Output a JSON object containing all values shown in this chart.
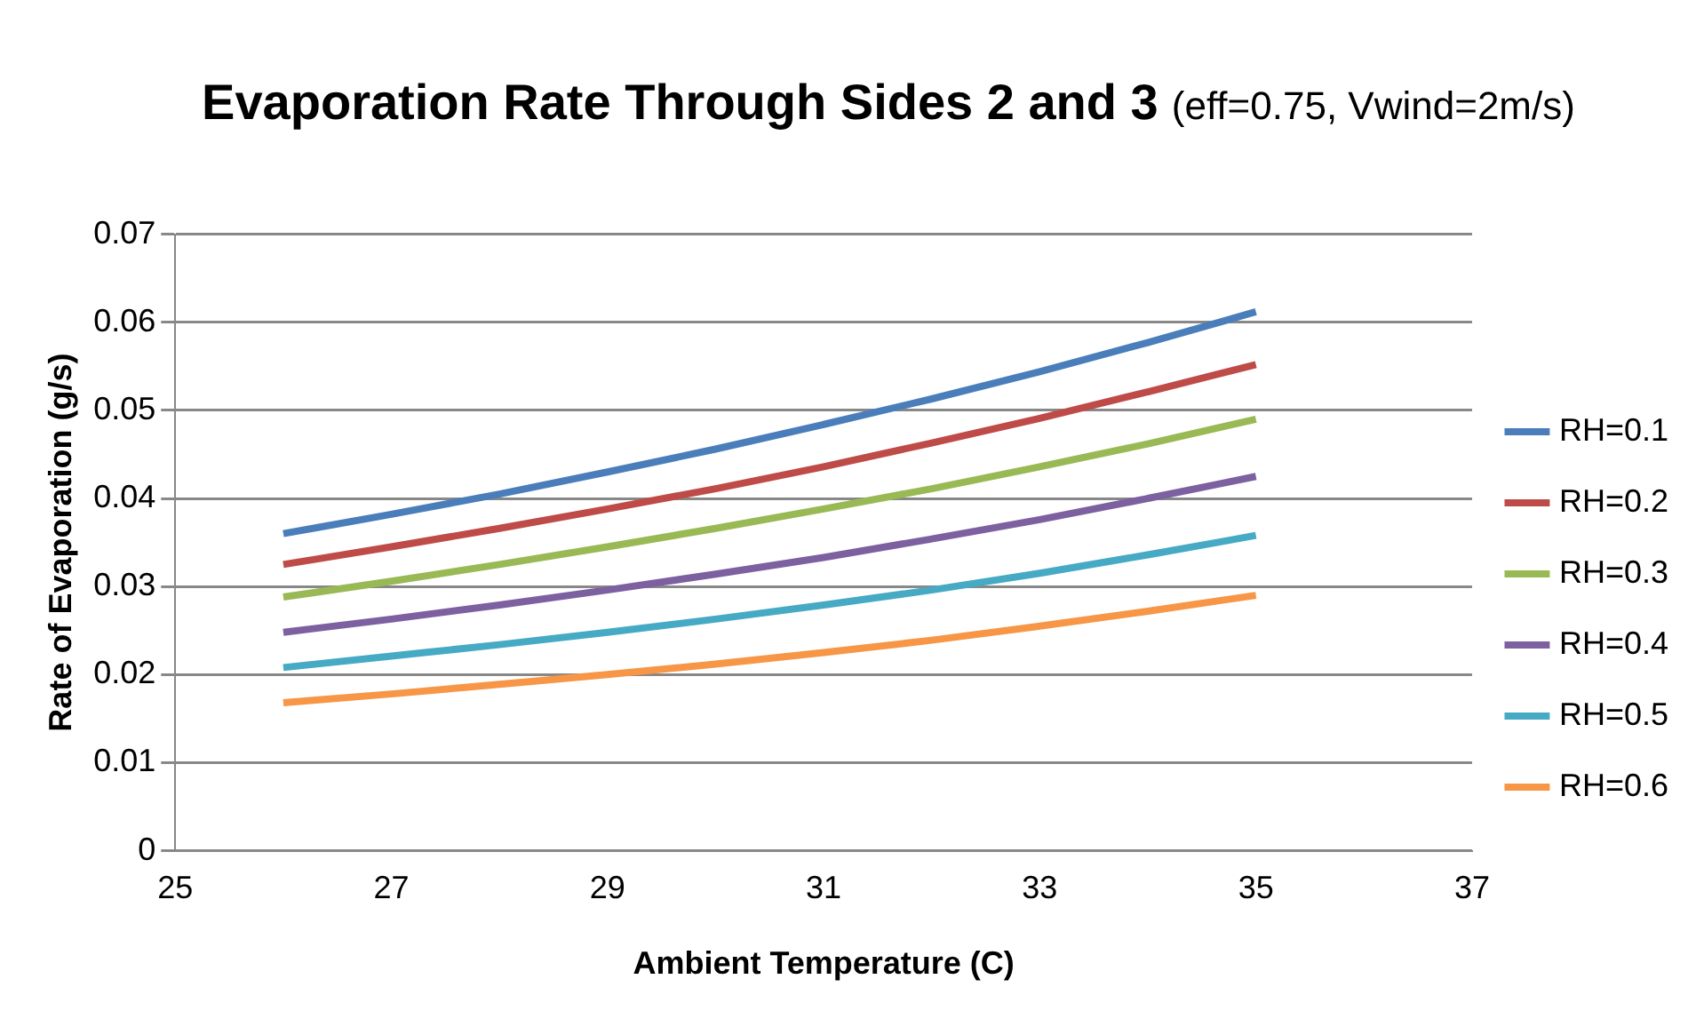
{
  "chart_data": {
    "type": "line",
    "title": "Evaporation Rate Through Sides 2 and 3",
    "subtitle": "(eff=0.75, Vwind=2m/s)",
    "xlabel": "Ambient Temperature (C)",
    "ylabel": "Rate of Evaporation (g/s)",
    "x": [
      26,
      27,
      28,
      29,
      30,
      31,
      32,
      33,
      34,
      35
    ],
    "series": [
      {
        "name": "RH=0.1",
        "color": "#4a7ebb",
        "values": [
          0.036,
          0.0382,
          0.0405,
          0.043,
          0.0456,
          0.0484,
          0.0513,
          0.0544,
          0.0577,
          0.0612
        ]
      },
      {
        "name": "RH=0.2",
        "color": "#be4b48",
        "values": [
          0.0325,
          0.0345,
          0.0366,
          0.0388,
          0.0411,
          0.0436,
          0.0463,
          0.0491,
          0.0521,
          0.0552
        ]
      },
      {
        "name": "RH=0.3",
        "color": "#98b954",
        "values": [
          0.0288,
          0.0306,
          0.0325,
          0.0345,
          0.0366,
          0.0388,
          0.0411,
          0.0436,
          0.0462,
          0.049
        ]
      },
      {
        "name": "RH=0.4",
        "color": "#7d60a0",
        "values": [
          0.0248,
          0.0263,
          0.0279,
          0.0296,
          0.0314,
          0.0333,
          0.0354,
          0.0376,
          0.04,
          0.0425
        ]
      },
      {
        "name": "RH=0.5",
        "color": "#46aac5",
        "values": [
          0.0208,
          0.0221,
          0.0234,
          0.0248,
          0.0263,
          0.0279,
          0.0296,
          0.0315,
          0.0336,
          0.0358
        ]
      },
      {
        "name": "RH=0.6",
        "color": "#f79646",
        "values": [
          0.0168,
          0.0178,
          0.0189,
          0.02,
          0.0212,
          0.0225,
          0.0239,
          0.0255,
          0.0272,
          0.029
        ]
      }
    ],
    "xlim": [
      25,
      37
    ],
    "xticks": [
      25,
      27,
      29,
      31,
      33,
      35,
      37
    ],
    "ylim": [
      0,
      0.07
    ],
    "yticks": [
      0,
      0.01,
      0.02,
      0.03,
      0.04,
      0.05,
      0.06,
      0.07
    ],
    "grid": "y",
    "legend": "right",
    "marker": "none",
    "line_style": "solid"
  }
}
